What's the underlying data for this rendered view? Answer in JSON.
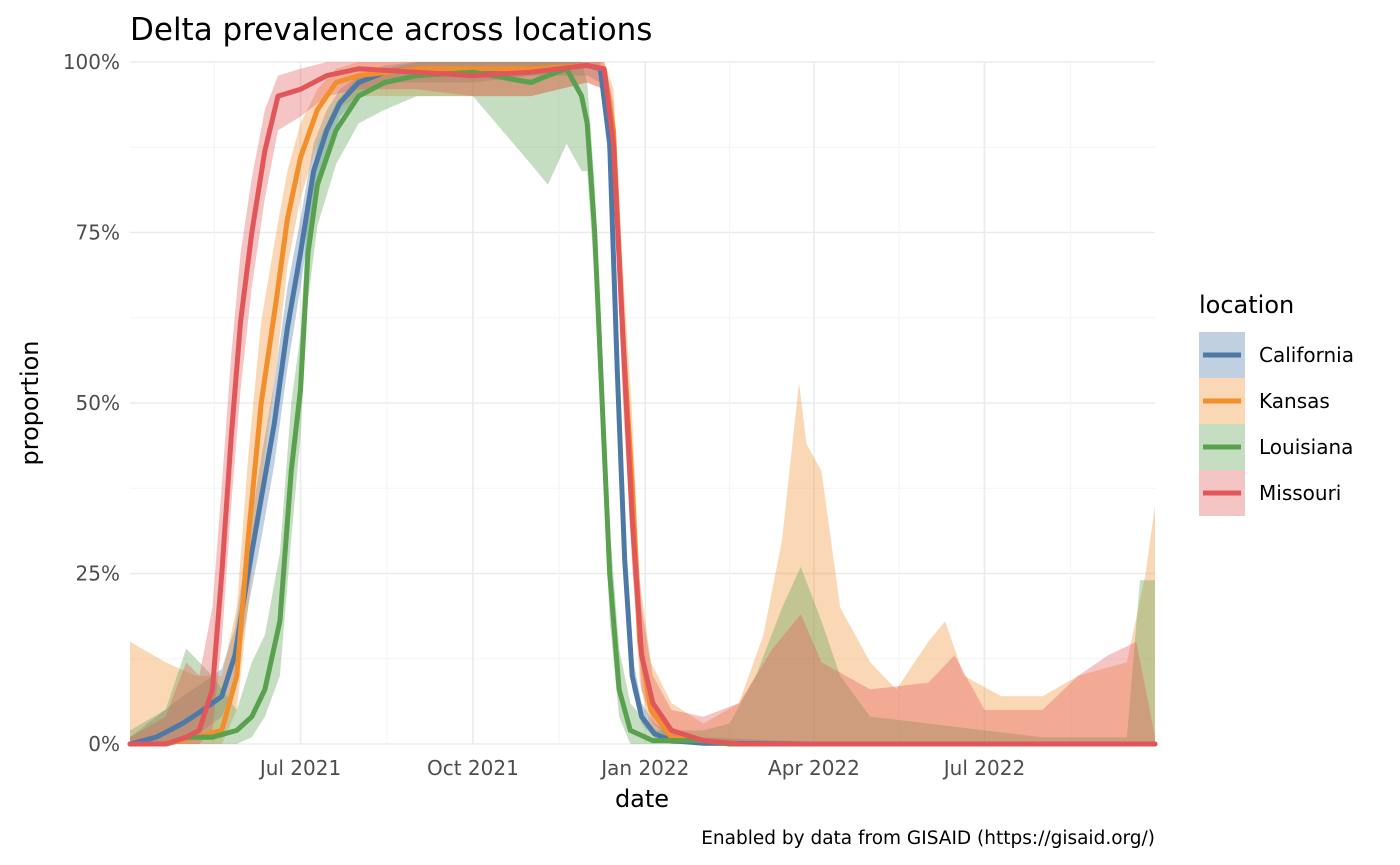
{
  "chart_data": {
    "type": "area",
    "title": "Delta prevalence across locations",
    "xlabel": "date",
    "ylabel": "proportion",
    "caption": "Enabled by data from GISAID (https://gisaid.org/)",
    "xlim": [
      "2021-04-01",
      "2022-09-30"
    ],
    "ylim": [
      0,
      1
    ],
    "x_ticks": [
      {
        "date": "2021-07-01",
        "label": "Jul 2021"
      },
      {
        "date": "2021-10-01",
        "label": "Oct 2021"
      },
      {
        "date": "2022-01-01",
        "label": "Jan 2022"
      },
      {
        "date": "2022-04-01",
        "label": "Apr 2022"
      },
      {
        "date": "2022-07-01",
        "label": "Jul 2022"
      }
    ],
    "y_ticks": [
      {
        "value": 0,
        "label": "0%"
      },
      {
        "value": 0.25,
        "label": "25%"
      },
      {
        "value": 0.5,
        "label": "50%"
      },
      {
        "value": 0.75,
        "label": "75%"
      },
      {
        "value": 1,
        "label": "100%"
      }
    ],
    "grid": true,
    "legend": {
      "title": "location",
      "position": "right"
    },
    "series": [
      {
        "name": "California",
        "color": "#4e79a7",
        "points": [
          [
            "2021-04-01",
            0,
            0,
            0.01
          ],
          [
            "2021-04-15",
            0.01,
            0,
            0.04
          ],
          [
            "2021-04-29",
            0.03,
            0.01,
            0.07
          ],
          [
            "2021-05-10",
            0.05,
            0.02,
            0.09
          ],
          [
            "2021-05-20",
            0.07,
            0.04,
            0.11
          ],
          [
            "2021-05-27",
            0.13,
            0.09,
            0.17
          ],
          [
            "2021-06-03",
            0.25,
            0.2,
            0.3
          ],
          [
            "2021-06-10",
            0.36,
            0.3,
            0.42
          ],
          [
            "2021-06-17",
            0.47,
            0.41,
            0.53
          ],
          [
            "2021-06-24",
            0.61,
            0.55,
            0.67
          ],
          [
            "2021-07-01",
            0.72,
            0.67,
            0.77
          ],
          [
            "2021-07-08",
            0.84,
            0.8,
            0.88
          ],
          [
            "2021-07-15",
            0.9,
            0.87,
            0.93
          ],
          [
            "2021-07-22",
            0.94,
            0.92,
            0.96
          ],
          [
            "2021-08-01",
            0.97,
            0.95,
            0.98
          ],
          [
            "2021-08-15",
            0.985,
            0.97,
            0.995
          ],
          [
            "2021-09-01",
            0.99,
            0.97,
            1
          ],
          [
            "2021-10-01",
            0.985,
            0.97,
            1
          ],
          [
            "2021-11-01",
            0.99,
            0.98,
            1
          ],
          [
            "2021-12-01",
            0.995,
            0.98,
            1
          ],
          [
            "2021-12-08",
            0.99,
            0.97,
            1
          ],
          [
            "2021-12-13",
            0.88,
            0.84,
            0.92
          ],
          [
            "2021-12-17",
            0.55,
            0.5,
            0.6
          ],
          [
            "2021-12-21",
            0.27,
            0.23,
            0.31
          ],
          [
            "2021-12-25",
            0.1,
            0.08,
            0.13
          ],
          [
            "2021-12-30",
            0.04,
            0.03,
            0.06
          ],
          [
            "2022-01-06",
            0.015,
            0.008,
            0.03
          ],
          [
            "2022-01-15",
            0.005,
            0,
            0.015
          ],
          [
            "2022-02-01",
            0.001,
            0,
            0.01
          ],
          [
            "2022-04-01",
            0,
            0,
            0.003
          ],
          [
            "2022-07-01",
            0,
            0,
            0.002
          ],
          [
            "2022-09-30",
            0,
            0,
            0.002
          ]
        ]
      },
      {
        "name": "Kansas",
        "color": "#f28e2b",
        "points": [
          [
            "2021-04-01",
            0,
            0,
            0.15
          ],
          [
            "2021-04-20",
            0,
            0,
            0.12
          ],
          [
            "2021-05-06",
            0.01,
            0,
            0.1
          ],
          [
            "2021-05-20",
            0.02,
            0,
            0.1
          ],
          [
            "2021-05-28",
            0.1,
            0.05,
            0.2
          ],
          [
            "2021-06-03",
            0.3,
            0.2,
            0.42
          ],
          [
            "2021-06-10",
            0.5,
            0.38,
            0.62
          ],
          [
            "2021-06-18",
            0.65,
            0.55,
            0.75
          ],
          [
            "2021-06-24",
            0.77,
            0.7,
            0.84
          ],
          [
            "2021-07-01",
            0.86,
            0.8,
            0.91
          ],
          [
            "2021-07-10",
            0.93,
            0.88,
            0.96
          ],
          [
            "2021-07-20",
            0.97,
            0.93,
            0.99
          ],
          [
            "2021-08-01",
            0.98,
            0.95,
            1
          ],
          [
            "2021-09-01",
            0.99,
            0.95,
            1
          ],
          [
            "2021-10-01",
            0.99,
            0.95,
            1
          ],
          [
            "2021-11-01",
            0.99,
            0.95,
            1
          ],
          [
            "2021-12-01",
            0.995,
            0.97,
            1
          ],
          [
            "2021-12-10",
            0.99,
            0.96,
            1
          ],
          [
            "2021-12-15",
            0.9,
            0.83,
            0.96
          ],
          [
            "2021-12-20",
            0.6,
            0.5,
            0.7
          ],
          [
            "2021-12-25",
            0.38,
            0.27,
            0.48
          ],
          [
            "2021-12-29",
            0.15,
            0.09,
            0.24
          ],
          [
            "2022-01-04",
            0.05,
            0.02,
            0.12
          ],
          [
            "2022-01-15",
            0.01,
            0,
            0.06
          ],
          [
            "2022-02-01",
            0.005,
            0,
            0.03
          ],
          [
            "2022-02-20",
            0,
            0,
            0.06
          ],
          [
            "2022-03-05",
            0,
            0,
            0.16
          ],
          [
            "2022-03-15",
            0,
            0,
            0.3
          ],
          [
            "2022-03-24",
            0,
            0,
            0.53
          ],
          [
            "2022-03-28",
            0,
            0,
            0.44
          ],
          [
            "2022-04-05",
            0,
            0,
            0.4
          ],
          [
            "2022-04-15",
            0,
            0,
            0.2
          ],
          [
            "2022-05-01",
            0,
            0,
            0.12
          ],
          [
            "2022-05-15",
            0,
            0,
            0.08
          ],
          [
            "2022-06-01",
            0,
            0,
            0.15
          ],
          [
            "2022-06-10",
            0,
            0,
            0.18
          ],
          [
            "2022-06-20",
            0,
            0,
            0.1
          ],
          [
            "2022-07-10",
            0,
            0,
            0.07
          ],
          [
            "2022-08-01",
            0,
            0,
            0.07
          ],
          [
            "2022-08-20",
            0,
            0,
            0.1
          ],
          [
            "2022-09-15",
            0,
            0,
            0.12
          ],
          [
            "2022-09-25",
            0,
            0,
            0.25
          ],
          [
            "2022-09-30",
            0,
            0,
            0.35
          ]
        ]
      },
      {
        "name": "Louisiana",
        "color": "#59a14f",
        "points": [
          [
            "2021-04-01",
            0,
            0,
            0.02
          ],
          [
            "2021-04-20",
            0,
            0,
            0.05
          ],
          [
            "2021-05-01",
            0.01,
            0,
            0.14
          ],
          [
            "2021-05-15",
            0.01,
            0,
            0.1
          ],
          [
            "2021-05-28",
            0.02,
            0,
            0.05
          ],
          [
            "2021-06-05",
            0.04,
            0.01,
            0.12
          ],
          [
            "2021-06-12",
            0.08,
            0.04,
            0.16
          ],
          [
            "2021-06-20",
            0.18,
            0.1,
            0.28
          ],
          [
            "2021-06-26",
            0.4,
            0.3,
            0.5
          ],
          [
            "2021-07-01",
            0.52,
            0.45,
            0.6
          ],
          [
            "2021-07-05",
            0.72,
            0.65,
            0.8
          ],
          [
            "2021-07-10",
            0.82,
            0.76,
            0.88
          ],
          [
            "2021-07-20",
            0.9,
            0.85,
            0.94
          ],
          [
            "2021-08-01",
            0.95,
            0.91,
            0.98
          ],
          [
            "2021-08-15",
            0.97,
            0.93,
            0.99
          ],
          [
            "2021-09-01",
            0.98,
            0.95,
            1
          ],
          [
            "2021-10-01",
            0.985,
            0.95,
            1
          ],
          [
            "2021-11-01",
            0.97,
            0.85,
            1
          ],
          [
            "2021-11-10",
            0.98,
            0.82,
            1
          ],
          [
            "2021-11-20",
            0.99,
            0.88,
            1
          ],
          [
            "2021-11-28",
            0.95,
            0.84,
            1
          ],
          [
            "2021-12-01",
            0.91,
            0.84,
            0.97
          ],
          [
            "2021-12-05",
            0.75,
            0.68,
            0.82
          ],
          [
            "2021-12-09",
            0.5,
            0.42,
            0.58
          ],
          [
            "2021-12-13",
            0.25,
            0.18,
            0.32
          ],
          [
            "2021-12-18",
            0.08,
            0.04,
            0.14
          ],
          [
            "2021-12-24",
            0.02,
            0,
            0.06
          ],
          [
            "2022-01-05",
            0.005,
            0,
            0.02
          ],
          [
            "2022-02-01",
            0.005,
            0,
            0.02
          ],
          [
            "2022-02-15",
            0,
            0,
            0.03
          ],
          [
            "2022-03-01",
            0,
            0,
            0.1
          ],
          [
            "2022-03-15",
            0,
            0,
            0.2
          ],
          [
            "2022-03-25",
            0,
            0,
            0.26
          ],
          [
            "2022-04-05",
            0,
            0,
            0.18
          ],
          [
            "2022-04-15",
            0,
            0,
            0.1
          ],
          [
            "2022-05-01",
            0,
            0,
            0.04
          ],
          [
            "2022-06-01",
            0,
            0,
            0.03
          ],
          [
            "2022-07-01",
            0,
            0,
            0.02
          ],
          [
            "2022-08-01",
            0,
            0,
            0.01
          ],
          [
            "2022-09-15",
            0,
            0,
            0.01
          ],
          [
            "2022-09-22",
            0,
            0,
            0.24
          ],
          [
            "2022-09-30",
            0,
            0,
            0.24
          ]
        ]
      },
      {
        "name": "Missouri",
        "color": "#e15759",
        "points": [
          [
            "2021-04-01",
            0,
            0,
            0.01
          ],
          [
            "2021-04-20",
            0,
            0,
            0.04
          ],
          [
            "2021-05-01",
            0.01,
            0,
            0.12
          ],
          [
            "2021-05-08",
            0.02,
            0,
            0.1
          ],
          [
            "2021-05-15",
            0.08,
            0.02,
            0.2
          ],
          [
            "2021-05-20",
            0.25,
            0.15,
            0.38
          ],
          [
            "2021-05-25",
            0.45,
            0.35,
            0.57
          ],
          [
            "2021-05-30",
            0.62,
            0.52,
            0.72
          ],
          [
            "2021-06-05",
            0.75,
            0.67,
            0.83
          ],
          [
            "2021-06-12",
            0.87,
            0.8,
            0.93
          ],
          [
            "2021-06-19",
            0.95,
            0.9,
            0.98
          ],
          [
            "2021-07-01",
            0.96,
            0.92,
            0.99
          ],
          [
            "2021-07-15",
            0.98,
            0.95,
            1
          ],
          [
            "2021-08-01",
            0.99,
            0.96,
            1
          ],
          [
            "2021-09-01",
            0.985,
            0.96,
            1
          ],
          [
            "2021-10-01",
            0.98,
            0.95,
            1
          ],
          [
            "2021-11-01",
            0.985,
            0.95,
            1
          ],
          [
            "2021-12-01",
            0.995,
            0.97,
            1
          ],
          [
            "2021-12-10",
            0.99,
            0.96,
            1
          ],
          [
            "2021-12-15",
            0.88,
            0.82,
            0.94
          ],
          [
            "2021-12-20",
            0.6,
            0.52,
            0.68
          ],
          [
            "2021-12-25",
            0.33,
            0.26,
            0.42
          ],
          [
            "2021-12-30",
            0.13,
            0.08,
            0.2
          ],
          [
            "2022-01-05",
            0.06,
            0.03,
            0.1
          ],
          [
            "2022-01-15",
            0.02,
            0.005,
            0.05
          ],
          [
            "2022-02-01",
            0.005,
            0,
            0.04
          ],
          [
            "2022-02-20",
            0,
            0,
            0.06
          ],
          [
            "2022-03-10",
            0,
            0,
            0.14
          ],
          [
            "2022-03-25",
            0,
            0,
            0.19
          ],
          [
            "2022-04-05",
            0,
            0,
            0.12
          ],
          [
            "2022-05-01",
            0,
            0,
            0.08
          ],
          [
            "2022-06-01",
            0,
            0,
            0.09
          ],
          [
            "2022-06-15",
            0,
            0,
            0.13
          ],
          [
            "2022-07-01",
            0,
            0,
            0.05
          ],
          [
            "2022-08-01",
            0,
            0,
            0.05
          ],
          [
            "2022-08-20",
            0,
            0,
            0.1
          ],
          [
            "2022-09-05",
            0,
            0,
            0.13
          ],
          [
            "2022-09-20",
            0,
            0,
            0.15
          ],
          [
            "2022-09-30",
            0,
            0,
            0.01
          ]
        ]
      }
    ]
  }
}
